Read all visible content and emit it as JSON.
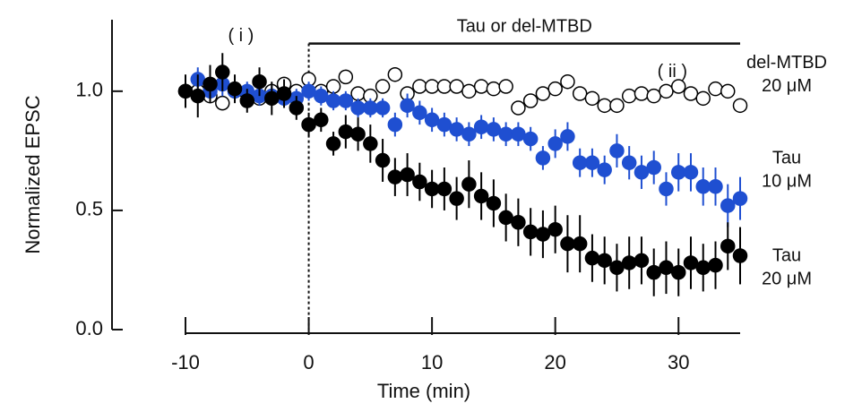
{
  "chart_data": {
    "type": "scatter",
    "xlabel": "Time (min)",
    "ylabel": "Normalized EPSC",
    "xlim": [
      -10,
      35
    ],
    "ylim": [
      0,
      1.3
    ],
    "xticks": [
      -10,
      0,
      10,
      20,
      30
    ],
    "yticks": [
      {
        "value": 0,
        "label": "0.0"
      },
      {
        "value": 0.5,
        "label": "0.5"
      },
      {
        "value": 1,
        "label": "1.0"
      }
    ],
    "x": [
      -10,
      -9,
      -8,
      -7,
      -6,
      -5,
      -4,
      -3,
      -2,
      -1,
      0,
      1,
      2,
      3,
      4,
      5,
      6,
      7,
      8,
      9,
      10,
      11,
      12,
      13,
      14,
      15,
      16,
      17,
      18,
      19,
      20,
      21,
      22,
      23,
      24,
      25,
      26,
      27,
      28,
      29,
      30,
      31,
      32,
      33,
      34,
      35
    ],
    "annotations": [
      {
        "text": "( i )",
        "x": -5.5,
        "y": 1.23
      },
      {
        "text": "( ii )",
        "x": 29.5,
        "y": 1.08
      },
      {
        "text": "Tau or del-MTBD",
        "x": 17.5,
        "y": 1.27,
        "from": 0,
        "to": 35,
        "bar_y": 1.2
      }
    ],
    "series": [
      {
        "name": "del-MTBD",
        "dose": "20 μM",
        "color": "#000000",
        "fill": "#ffffff",
        "label_y": 1.02,
        "values": [
          1.0,
          1.0,
          0.98,
          0.95,
          1.0,
          0.99,
          0.97,
          1.0,
          1.03,
          1.0,
          1.05,
          1.0,
          1.02,
          1.06,
          0.99,
          0.98,
          1.02,
          1.07,
          0.99,
          1.02,
          1.02,
          1.02,
          1.02,
          1.0,
          1.02,
          1.01,
          1.02,
          0.93,
          0.96,
          0.99,
          1.01,
          1.04,
          0.99,
          0.97,
          0.94,
          0.94,
          0.98,
          0.99,
          0.98,
          1.0,
          1.02,
          0.99,
          0.97,
          1.01,
          1.0,
          0.94
        ],
        "errors": [
          0.02,
          0.02,
          0.03,
          0.03,
          0.02,
          0.02,
          0.02,
          0.03,
          0.03,
          0.02,
          0.03,
          0.02,
          0.02,
          0.03,
          0.02,
          0.02,
          0.02,
          0.03,
          0.02,
          0.02,
          0.02,
          0.02,
          0.02,
          0.02,
          0.02,
          0.02,
          0.02,
          0.03,
          0.03,
          0.02,
          0.02,
          0.03,
          0.02,
          0.02,
          0.02,
          0.02,
          0.02,
          0.02,
          0.02,
          0.02,
          0.02,
          0.02,
          0.02,
          0.02,
          0.02,
          0.02
        ]
      },
      {
        "name": "Tau",
        "dose": "10 μM",
        "color": "#1f4fd1",
        "fill": "#1f4fd1",
        "label_y": 0.62,
        "values": [
          null,
          1.05,
          1.0,
          1.03,
          1.0,
          1.0,
          0.98,
          0.98,
          0.97,
          0.97,
          1.0,
          0.98,
          0.96,
          0.96,
          0.93,
          0.93,
          0.93,
          0.86,
          0.94,
          0.91,
          0.88,
          0.86,
          0.84,
          0.82,
          0.85,
          0.84,
          0.82,
          0.82,
          0.8,
          0.72,
          0.78,
          0.81,
          0.7,
          0.7,
          0.67,
          0.75,
          0.7,
          0.66,
          0.68,
          0.59,
          0.66,
          0.66,
          0.6,
          0.6,
          0.52,
          0.55
        ],
        "errors": [
          null,
          0.05,
          0.04,
          0.05,
          0.04,
          0.04,
          0.04,
          0.04,
          0.04,
          0.04,
          0.04,
          0.04,
          0.04,
          0.04,
          0.04,
          0.04,
          0.04,
          0.05,
          0.05,
          0.05,
          0.05,
          0.05,
          0.05,
          0.05,
          0.05,
          0.05,
          0.05,
          0.05,
          0.05,
          0.05,
          0.06,
          0.06,
          0.06,
          0.06,
          0.06,
          0.07,
          0.07,
          0.07,
          0.07,
          0.07,
          0.08,
          0.08,
          0.08,
          0.08,
          0.09,
          0.09
        ]
      },
      {
        "name": "Tau",
        "dose": "20 μM",
        "color": "#000000",
        "fill": "#000000",
        "label_y": 0.21,
        "values": [
          1.0,
          0.98,
          1.03,
          1.08,
          1.01,
          0.96,
          1.04,
          0.97,
          0.99,
          0.93,
          0.86,
          0.88,
          0.78,
          0.83,
          0.82,
          0.78,
          0.71,
          0.64,
          0.65,
          0.62,
          0.59,
          0.59,
          0.55,
          0.61,
          0.56,
          0.53,
          0.47,
          0.45,
          0.41,
          0.4,
          0.42,
          0.36,
          0.36,
          0.3,
          0.29,
          0.26,
          0.28,
          0.29,
          0.24,
          0.26,
          0.24,
          0.28,
          0.26,
          0.27,
          0.35,
          0.31
        ],
        "errors": [
          0.07,
          0.09,
          0.08,
          0.08,
          0.06,
          0.05,
          0.06,
          0.07,
          0.06,
          0.05,
          0.05,
          0.05,
          0.05,
          0.07,
          0.07,
          0.08,
          0.09,
          0.08,
          0.09,
          0.08,
          0.08,
          0.09,
          0.09,
          0.1,
          0.1,
          0.1,
          0.1,
          0.1,
          0.1,
          0.1,
          0.1,
          0.12,
          0.12,
          0.1,
          0.1,
          0.1,
          0.11,
          0.1,
          0.1,
          0.11,
          0.1,
          0.11,
          0.1,
          0.1,
          0.1,
          0.12
        ]
      }
    ]
  }
}
